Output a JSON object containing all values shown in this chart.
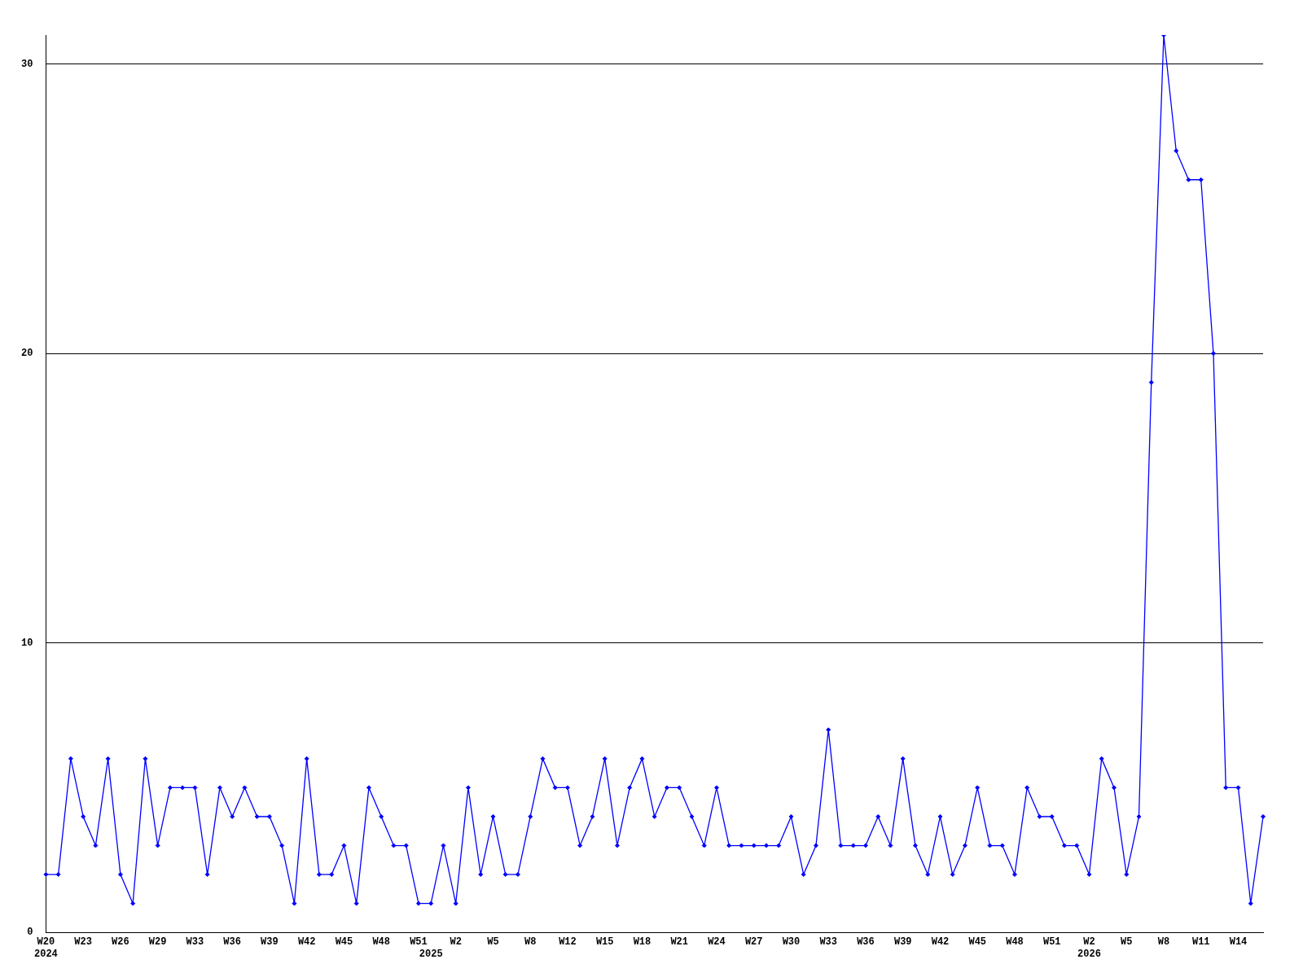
{
  "chart_data": {
    "type": "line",
    "categories": [
      "W20\n2024",
      null,
      null,
      "W23",
      null,
      null,
      "W26",
      null,
      null,
      "W29",
      null,
      null,
      "W33",
      null,
      null,
      "W36",
      null,
      null,
      "W39",
      null,
      null,
      "W42",
      null,
      null,
      "W45",
      null,
      null,
      "W48",
      null,
      null,
      "W51",
      "\n2025",
      null,
      "W2",
      null,
      null,
      "W5",
      null,
      null,
      "W8",
      null,
      null,
      "W12",
      null,
      null,
      "W15",
      null,
      null,
      "W18",
      null,
      null,
      "W21",
      null,
      null,
      "W24",
      null,
      null,
      "W27",
      null,
      null,
      "W30",
      null,
      null,
      "W33",
      null,
      null,
      "W36",
      null,
      null,
      "W39",
      null,
      null,
      "W42",
      null,
      null,
      "W45",
      null,
      null,
      "W48",
      null,
      null,
      "W51",
      null,
      null,
      "W2\n2026",
      null,
      null,
      "W5",
      null,
      null,
      "W8",
      null,
      null,
      "W11",
      null,
      null,
      "W14",
      null,
      null
    ],
    "series": [
      {
        "color": "#0000ff",
        "values": [
          2,
          2,
          6,
          4,
          3,
          6,
          2,
          1,
          6,
          3,
          5,
          5,
          5,
          2,
          5,
          4,
          5,
          4,
          4,
          3,
          1,
          6,
          2,
          2,
          3,
          1,
          5,
          4,
          3,
          3,
          1,
          1,
          3,
          1,
          5,
          2,
          4,
          2,
          2,
          4,
          6,
          5,
          5,
          3,
          4,
          6,
          3,
          5,
          6,
          4,
          5,
          5,
          4,
          3,
          5,
          3,
          3,
          3,
          3,
          3,
          4,
          2,
          3,
          7,
          3,
          3,
          3,
          4,
          3,
          6,
          3,
          2,
          4,
          2,
          3,
          5,
          3,
          3,
          2,
          5,
          4,
          4,
          3,
          3,
          2,
          6,
          5,
          2,
          4,
          19,
          31,
          27,
          26,
          26,
          20,
          5,
          5,
          1,
          4
        ]
      }
    ],
    "ylim": [
      0,
      31
    ],
    "yticks": [
      0,
      10,
      20,
      30
    ],
    "grid": "y",
    "marker": "diamond"
  }
}
